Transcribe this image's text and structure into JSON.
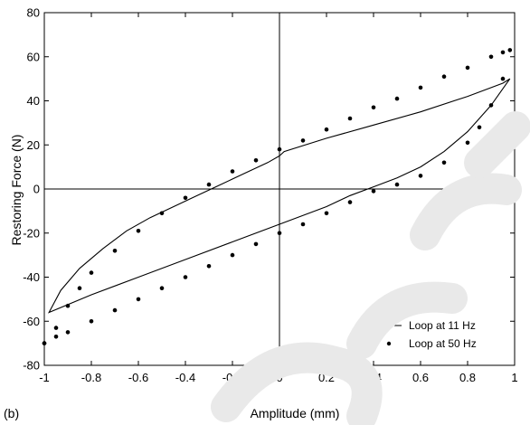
{
  "chart_data": {
    "type": "line",
    "panel_label": "(b)",
    "xlabel": "Amplitude (mm)",
    "ylabel": "Restoring Force (N)",
    "xlim": [
      -1,
      1
    ],
    "ylim": [
      -80,
      80
    ],
    "x_ticks": [
      -1,
      -0.8,
      -0.6,
      -0.4,
      -0.2,
      0,
      0.2,
      0.4,
      0.6,
      0.8,
      1
    ],
    "x_tick_labels": [
      "-1",
      "-0.8",
      "-0.6",
      "-0.4",
      "-0.2",
      "0",
      "0.2",
      "0.4",
      "0.6",
      "0.8",
      "1"
    ],
    "y_ticks": [
      -80,
      -60,
      -40,
      -20,
      0,
      20,
      40,
      60,
      80
    ],
    "y_tick_labels": [
      "-80",
      "-60",
      "-40",
      "-20",
      "0",
      "20",
      "40",
      "60",
      "80"
    ],
    "grid": false,
    "zero_lines": true,
    "legend_position": "bottom-right",
    "series": [
      {
        "name": "Loop at 11 Hz",
        "style": "solid-line",
        "color": "#000000",
        "x": [
          0,
          0.02,
          0.2,
          0.4,
          0.6,
          0.8,
          0.95,
          0.98,
          0.9,
          0.8,
          0.7,
          0.6,
          0.5,
          0.4,
          0.3,
          0.2,
          0,
          -0.2,
          -0.4,
          -0.6,
          -0.8,
          -0.98,
          -0.93,
          -0.85,
          -0.75,
          -0.65,
          -0.55,
          -0.45,
          -0.35,
          -0.25,
          -0.15,
          -0.05,
          0
        ],
        "y": [
          15,
          17,
          23,
          29,
          35,
          42,
          48,
          50,
          38,
          26,
          17,
          10,
          5,
          1,
          -3,
          -8,
          -16,
          -24,
          -32,
          -40,
          -48,
          -56,
          -46,
          -36,
          -27,
          -19,
          -13,
          -8,
          -3,
          2,
          7,
          12,
          15
        ]
      },
      {
        "name": "Loop at 50 Hz",
        "style": "dots",
        "color": "#000000",
        "x": [
          -1,
          -0.95,
          -0.9,
          -0.85,
          -0.8,
          -0.7,
          -0.6,
          -0.5,
          -0.4,
          -0.3,
          -0.2,
          -0.1,
          0,
          0.1,
          0.2,
          0.3,
          0.4,
          0.5,
          0.6,
          0.7,
          0.8,
          0.9,
          0.95,
          0.98,
          0.95,
          0.9,
          0.85,
          0.8,
          0.7,
          0.6,
          0.5,
          0.4,
          0.3,
          0.2,
          0.1,
          0,
          -0.1,
          -0.2,
          -0.3,
          -0.4,
          -0.5,
          -0.6,
          -0.7,
          -0.8,
          -0.9,
          -0.95,
          -1
        ],
        "y": [
          -70,
          -63,
          -53,
          -45,
          -38,
          -28,
          -19,
          -11,
          -4,
          2,
          8,
          13,
          18,
          22,
          27,
          32,
          37,
          41,
          46,
          51,
          55,
          60,
          62,
          63,
          50,
          38,
          28,
          21,
          12,
          6,
          2,
          -1,
          -6,
          -11,
          -16,
          -20,
          -25,
          -30,
          -35,
          -40,
          -45,
          -50,
          -55,
          -60,
          -65,
          -67,
          -70
        ]
      }
    ]
  }
}
